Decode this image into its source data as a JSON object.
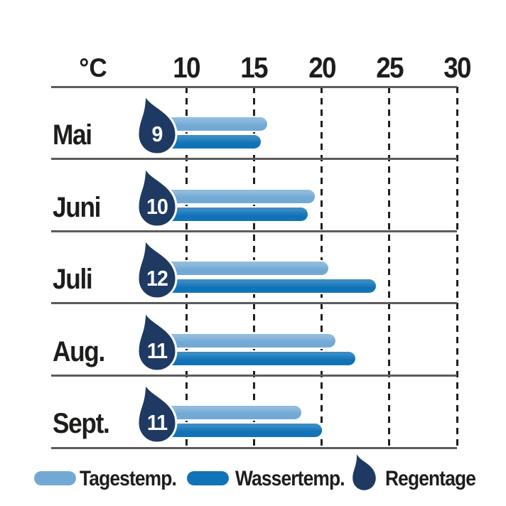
{
  "chart_data": {
    "type": "bar",
    "orientation": "horizontal",
    "unit_label": "°C",
    "axis_ticks": [
      10,
      15,
      20,
      25,
      30
    ],
    "axis_range": [
      8,
      30
    ],
    "grid": "dashed-vertical",
    "legend_position": "bottom",
    "categories": [
      "Mai",
      "Juni",
      "Juli",
      "Aug.",
      "Sept."
    ],
    "series": [
      {
        "name": "Tagestemp.",
        "kind": "bar",
        "color": "#72a9d4",
        "values": [
          16,
          19.5,
          20.5,
          21,
          18.5
        ]
      },
      {
        "name": "Wassertemp.",
        "kind": "bar",
        "color": "#1173b7",
        "values": [
          15.5,
          19,
          24,
          22.5,
          20
        ]
      },
      {
        "name": "Regentage",
        "kind": "drop-badge",
        "color": "#1e3a63",
        "values": [
          9,
          10,
          12,
          11,
          11
        ]
      }
    ]
  },
  "colors": {
    "day_temp_bar": "#72a9d4",
    "water_temp_bar": "#1173b7",
    "rain_drop": "#1e3a63",
    "separator_line": "#5c5c5c",
    "gridline": "#1f1f1f",
    "text": "#1d1d1b",
    "background": "#ffffff",
    "drop_number": "#ffffff"
  }
}
